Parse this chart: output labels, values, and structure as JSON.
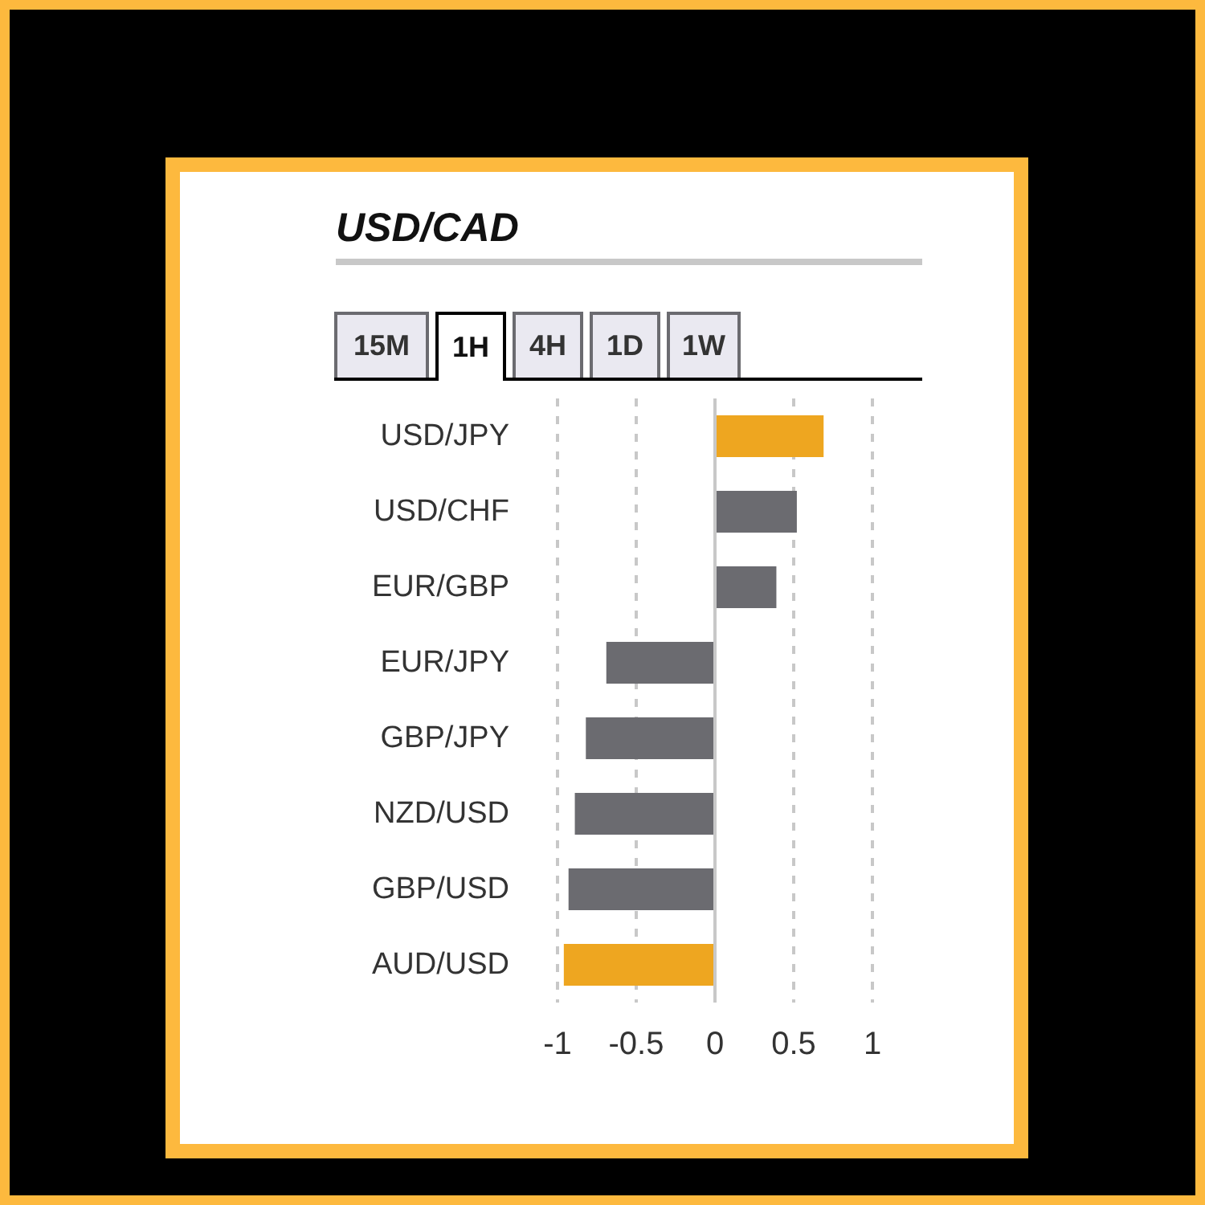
{
  "chart_data": {
    "type": "bar",
    "orientation": "horizontal",
    "title": "USD/CAD",
    "annotations": [
      "15M",
      "1H",
      "4H",
      "1D",
      "1W"
    ],
    "categories": [
      "USD/JPY",
      "USD/CHF",
      "EUR/GBP",
      "EUR/JPY",
      "GBP/JPY",
      "NZD/USD",
      "GBP/USD",
      "AUD/USD"
    ],
    "values": [
      0.69,
      0.52,
      0.39,
      -0.69,
      -0.82,
      -0.89,
      -0.93,
      -0.96
    ],
    "colors": [
      "#eea620",
      "#6b6b70",
      "#6b6b70",
      "#6b6b70",
      "#6b6b70",
      "#6b6b70",
      "#6b6b70",
      "#eea620"
    ],
    "xlim": [
      -1,
      1
    ],
    "xticks": [
      -1,
      -0.5,
      0,
      0.5,
      1
    ],
    "grid": "x",
    "ref_lines": [
      {
        "axis": "x",
        "value": 0,
        "color": "#c8c8c8"
      }
    ]
  }
}
